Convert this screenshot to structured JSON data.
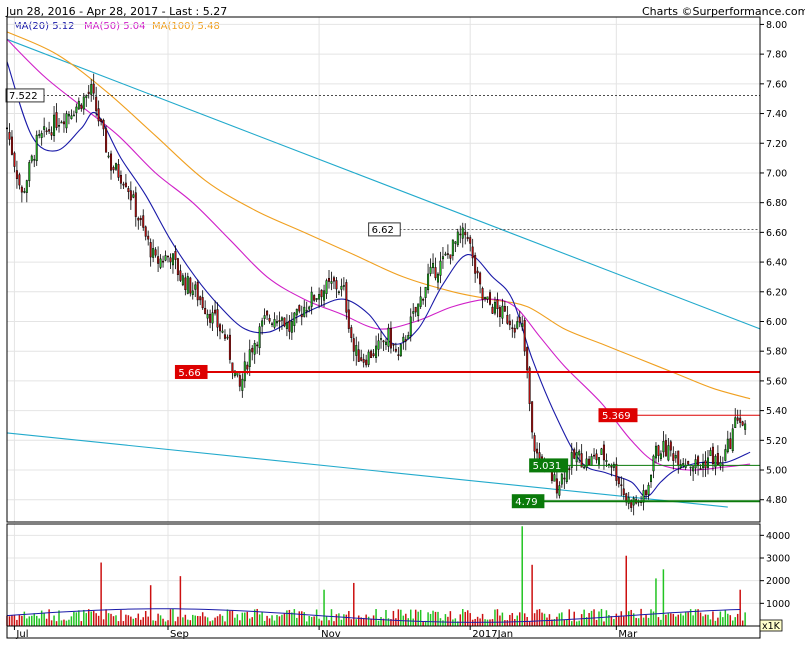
{
  "header": {
    "range_text": "Jun 28, 2016 - Apr 28, 2017 - Last : 5.27",
    "credit_prefix": "Charts",
    "credit_site": "Surperformance.com"
  },
  "legend": [
    {
      "label": "MA(20)",
      "value": "5.12",
      "color": "#1a1aa8"
    },
    {
      "label": "MA(50)",
      "value": "5.04",
      "color": "#d020c8"
    },
    {
      "label": "MA(100)",
      "value": "5.48",
      "color": "#f0a020"
    }
  ],
  "colors": {
    "up": "#22c422",
    "down": "#cc1010",
    "ma20": "#1a1aa8",
    "ma50": "#d020c8",
    "ma100": "#f0a020",
    "trend": "#22aacc",
    "support_red": "#dd0000",
    "support_green": "#0a7a0a",
    "volume_avg": "#1a1aa8"
  },
  "chart_data": {
    "type": "candlestick",
    "y_ticks": [
      "4.80",
      "5.00",
      "5.20",
      "5.40",
      "5.60",
      "5.80",
      "6.00",
      "6.20",
      "6.40",
      "6.60",
      "6.80",
      "7.00",
      "7.20",
      "7.40",
      "7.60",
      "7.80",
      "8.00"
    ],
    "y_range": [
      4.65,
      8.05
    ],
    "x_labels": [
      {
        "label": "Jul",
        "day": 3
      },
      {
        "label": "Sep",
        "day": 65
      },
      {
        "label": "Nov",
        "day": 126
      },
      {
        "label": "2017Jan",
        "day": 187
      },
      {
        "label": "Mar",
        "day": 246
      }
    ],
    "x_range_days": [
      0,
      304
    ],
    "price_keypoints": [
      [
        0,
        7.3
      ],
      [
        6,
        6.85
      ],
      [
        12,
        7.2
      ],
      [
        20,
        7.35
      ],
      [
        28,
        7.45
      ],
      [
        34,
        7.55
      ],
      [
        38,
        7.3
      ],
      [
        42,
        7.05
      ],
      [
        48,
        6.95
      ],
      [
        54,
        6.65
      ],
      [
        60,
        6.4
      ],
      [
        66,
        6.45
      ],
      [
        70,
        6.3
      ],
      [
        76,
        6.2
      ],
      [
        82,
        6.05
      ],
      [
        88,
        5.9
      ],
      [
        92,
        5.65
      ],
      [
        94,
        5.55
      ],
      [
        98,
        5.8
      ],
      [
        104,
        6.0
      ],
      [
        110,
        6.05
      ],
      [
        114,
        5.95
      ],
      [
        120,
        6.1
      ],
      [
        126,
        6.2
      ],
      [
        132,
        6.25
      ],
      [
        136,
        6.2
      ],
      [
        140,
        5.8
      ],
      [
        144,
        5.75
      ],
      [
        150,
        5.82
      ],
      [
        154,
        5.9
      ],
      [
        158,
        5.75
      ],
      [
        162,
        5.95
      ],
      [
        166,
        6.1
      ],
      [
        170,
        6.3
      ],
      [
        176,
        6.4
      ],
      [
        182,
        6.55
      ],
      [
        186,
        6.6
      ],
      [
        188,
        6.4
      ],
      [
        192,
        6.15
      ],
      [
        196,
        6.1
      ],
      [
        200,
        6.05
      ],
      [
        204,
        6.0
      ],
      [
        208,
        5.95
      ],
      [
        210,
        5.64
      ],
      [
        212,
        5.22
      ],
      [
        214,
        5.1
      ],
      [
        218,
        5.0
      ],
      [
        222,
        4.9
      ],
      [
        226,
        5.02
      ],
      [
        230,
        5.1
      ],
      [
        234,
        5.05
      ],
      [
        240,
        5.1
      ],
      [
        244,
        5.05
      ],
      [
        248,
        4.9
      ],
      [
        250,
        4.8
      ],
      [
        254,
        4.78
      ],
      [
        258,
        4.82
      ],
      [
        261,
        5.1
      ],
      [
        264,
        5.15
      ],
      [
        268,
        5.12
      ],
      [
        272,
        5.08
      ],
      [
        276,
        5.05
      ],
      [
        280,
        5.02
      ],
      [
        284,
        5.1
      ],
      [
        288,
        5.02
      ],
      [
        292,
        5.2
      ],
      [
        295,
        5.37
      ],
      [
        298,
        5.27
      ]
    ],
    "ma20": [
      [
        0,
        7.75
      ],
      [
        10,
        7.25
      ],
      [
        20,
        7.15
      ],
      [
        30,
        7.3
      ],
      [
        36,
        7.4
      ],
      [
        46,
        7.1
      ],
      [
        56,
        6.85
      ],
      [
        66,
        6.55
      ],
      [
        76,
        6.3
      ],
      [
        86,
        6.1
      ],
      [
        96,
        5.95
      ],
      [
        106,
        5.93
      ],
      [
        116,
        6.02
      ],
      [
        126,
        6.1
      ],
      [
        136,
        6.15
      ],
      [
        146,
        6.05
      ],
      [
        156,
        5.85
      ],
      [
        166,
        5.95
      ],
      [
        176,
        6.25
      ],
      [
        186,
        6.45
      ],
      [
        196,
        6.3
      ],
      [
        204,
        6.15
      ],
      [
        212,
        5.75
      ],
      [
        222,
        5.35
      ],
      [
        232,
        5.05
      ],
      [
        242,
        4.98
      ],
      [
        252,
        4.92
      ],
      [
        258,
        4.82
      ],
      [
        264,
        4.92
      ],
      [
        270,
        5.0
      ],
      [
        280,
        5.05
      ],
      [
        290,
        5.05
      ],
      [
        300,
        5.12
      ]
    ],
    "ma50": [
      [
        0,
        7.9
      ],
      [
        15,
        7.65
      ],
      [
        30,
        7.45
      ],
      [
        45,
        7.25
      ],
      [
        60,
        7.0
      ],
      [
        75,
        6.8
      ],
      [
        90,
        6.55
      ],
      [
        105,
        6.3
      ],
      [
        120,
        6.15
      ],
      [
        135,
        6.05
      ],
      [
        150,
        5.95
      ],
      [
        165,
        6.0
      ],
      [
        180,
        6.1
      ],
      [
        195,
        6.15
      ],
      [
        205,
        6.1
      ],
      [
        215,
        5.9
      ],
      [
        225,
        5.7
      ],
      [
        240,
        5.45
      ],
      [
        252,
        5.2
      ],
      [
        262,
        5.05
      ],
      [
        275,
        5.0
      ],
      [
        290,
        5.02
      ],
      [
        300,
        5.04
      ]
    ],
    "ma100": [
      [
        0,
        7.95
      ],
      [
        20,
        7.8
      ],
      [
        40,
        7.55
      ],
      [
        60,
        7.25
      ],
      [
        80,
        6.95
      ],
      [
        100,
        6.75
      ],
      [
        120,
        6.6
      ],
      [
        140,
        6.45
      ],
      [
        160,
        6.3
      ],
      [
        180,
        6.2
      ],
      [
        195,
        6.15
      ],
      [
        210,
        6.1
      ],
      [
        225,
        5.95
      ],
      [
        240,
        5.85
      ],
      [
        255,
        5.75
      ],
      [
        270,
        5.65
      ],
      [
        285,
        5.55
      ],
      [
        300,
        5.48
      ]
    ],
    "trend_upper": [
      [
        0,
        7.9
      ],
      [
        304,
        5.95
      ]
    ],
    "trend_lower": [
      [
        0,
        5.25
      ],
      [
        291,
        4.75
      ]
    ],
    "levels": [
      {
        "label": "7.522",
        "value": 7.522,
        "kind": "dotted-left"
      },
      {
        "label": "6.62",
        "value": 6.62,
        "kind": "dotted-mid"
      },
      {
        "label": "5.66",
        "value": 5.66,
        "kind": "red-thick"
      },
      {
        "label": "5.369",
        "value": 5.369,
        "kind": "red-thin"
      },
      {
        "label": "5.031",
        "value": 5.031,
        "kind": "green"
      },
      {
        "label": "4.79",
        "value": 4.79,
        "kind": "green-thick"
      }
    ],
    "volume_ticks": [
      "1000",
      "2000",
      "3000",
      "4000"
    ],
    "volume_range": [
      0,
      4500
    ],
    "volume_base": 400,
    "volume_spikes": [
      [
        38,
        2800
      ],
      [
        58,
        1800
      ],
      [
        70,
        2200
      ],
      [
        128,
        1600
      ],
      [
        140,
        1900
      ],
      [
        208,
        4400
      ],
      [
        212,
        2700
      ],
      [
        250,
        3100
      ],
      [
        262,
        2100
      ],
      [
        265,
        2500
      ],
      [
        296,
        1600
      ]
    ]
  },
  "footer": {
    "badge": "x1K"
  }
}
